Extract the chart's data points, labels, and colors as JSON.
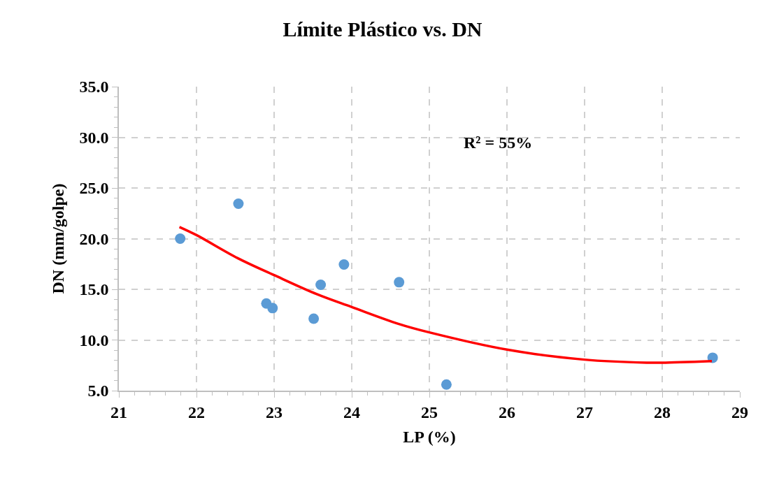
{
  "chart_data": {
    "type": "scatter",
    "title": "Límite Plástico vs. DN",
    "xlabel": "LP (%)",
    "ylabel": "DN (mm/golpe)",
    "annotations": [
      "R² = 55%"
    ],
    "series": [
      {
        "color": "#5b9bd5",
        "marker": "circle",
        "x": [
          21.79,
          22.54,
          22.9,
          22.98,
          23.51,
          23.6,
          23.9,
          24.61,
          25.22,
          28.65
        ],
        "values": [
          20.0,
          23.45,
          13.6,
          13.15,
          12.1,
          15.45,
          17.45,
          15.7,
          5.6,
          8.25
        ]
      },
      {
        "type": "line",
        "color": "#ff0000",
        "marker": "none",
        "line_style": "solid",
        "x": [
          21.78,
          22.0,
          22.53,
          23.0,
          23.55,
          24.0,
          24.6,
          25.0,
          26.0,
          27.0,
          27.8,
          28.0,
          28.64
        ],
        "values": [
          21.15,
          20.35,
          18.08,
          16.4,
          14.52,
          13.25,
          11.6,
          10.75,
          9.05,
          8.06,
          7.76,
          7.76,
          7.92
        ]
      }
    ],
    "xlim": [
      21,
      29
    ],
    "xticks": [
      21,
      22,
      23,
      24,
      25,
      26,
      27,
      28,
      29
    ],
    "ylim": [
      5,
      35
    ],
    "yticks": [
      {
        "value": 5,
        "label": "5.0"
      },
      {
        "value": 10,
        "label": "10.0"
      },
      {
        "value": 15,
        "label": "15.0"
      },
      {
        "value": 20,
        "label": "20.0"
      },
      {
        "value": 25,
        "label": "25.0"
      },
      {
        "value": 30,
        "label": "30.0"
      },
      {
        "value": 35,
        "label": "35.0"
      }
    ],
    "grid": true
  }
}
